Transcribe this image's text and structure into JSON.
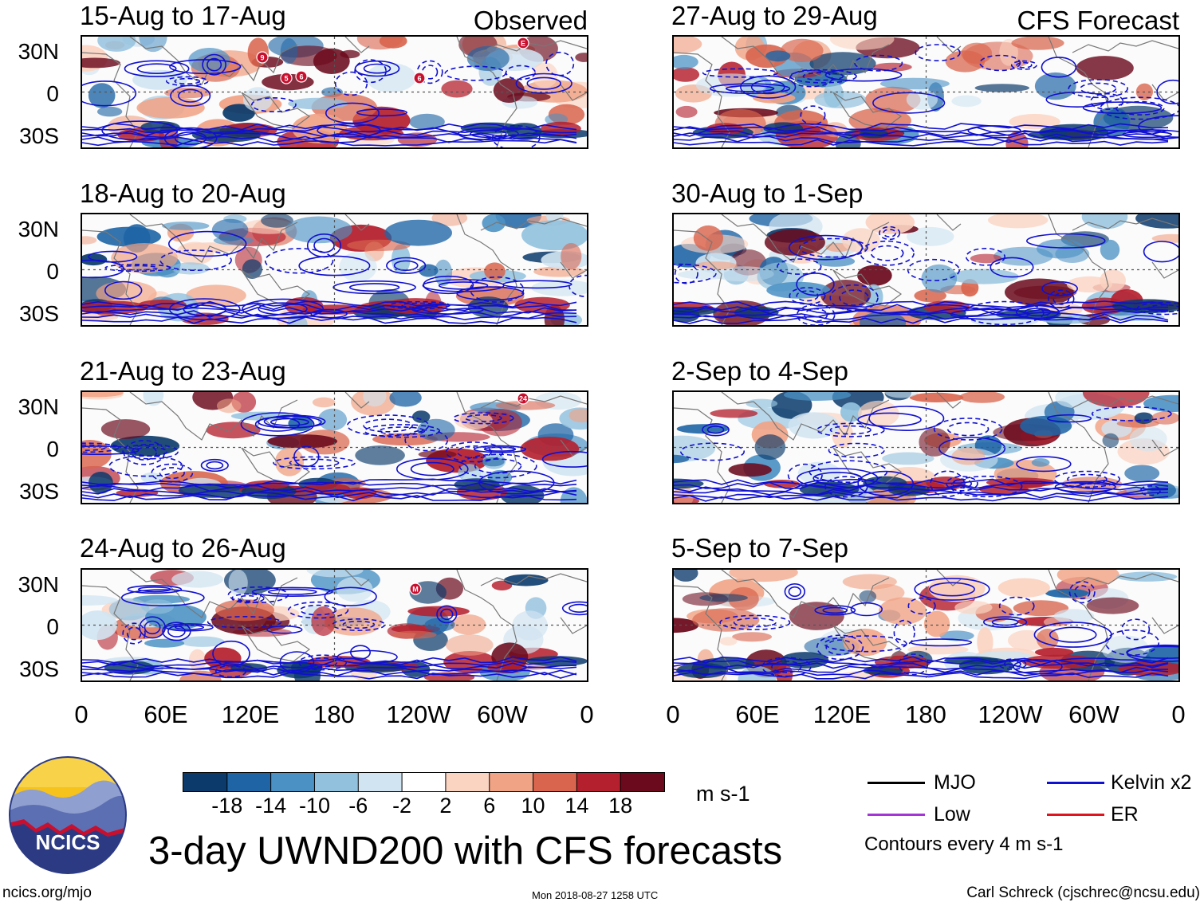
{
  "figure": {
    "title": "3-day UWND200 with CFS forecasts",
    "observed_label": "Observed",
    "forecast_label": "CFS Forecast",
    "latitude_labels": [
      "30N",
      "0",
      "30S"
    ],
    "longitude_labels": [
      "0",
      "60E",
      "120E",
      "180",
      "120W",
      "60W",
      "0"
    ]
  },
  "panels": [
    {
      "id": "obs-1",
      "title": "15-Aug to 17-Aug",
      "kind": "observed",
      "storm_markers": [
        "9",
        "5",
        "6",
        "6",
        "E"
      ]
    },
    {
      "id": "obs-2",
      "title": "18-Aug to 20-Aug",
      "kind": "observed",
      "storm_markers": []
    },
    {
      "id": "obs-3",
      "title": "21-Aug to 23-Aug",
      "kind": "observed",
      "storm_markers": [
        "24"
      ]
    },
    {
      "id": "obs-4",
      "title": "24-Aug to 26-Aug",
      "kind": "observed",
      "storm_markers": [
        "M"
      ]
    },
    {
      "id": "fc-1",
      "title": "27-Aug to 29-Aug",
      "kind": "forecast",
      "storm_markers": []
    },
    {
      "id": "fc-2",
      "title": "30-Aug to 1-Sep",
      "kind": "forecast",
      "storm_markers": []
    },
    {
      "id": "fc-3",
      "title": "2-Sep to 4-Sep",
      "kind": "forecast",
      "storm_markers": []
    },
    {
      "id": "fc-4",
      "title": "5-Sep to 7-Sep",
      "kind": "forecast",
      "storm_markers": []
    }
  ],
  "colorbar": {
    "units": "m s-1",
    "tick_labels": [
      "-18",
      "-14",
      "-10",
      "-6",
      "-2",
      "2",
      "6",
      "10",
      "14",
      "18"
    ],
    "colors": [
      "#0b3a6b",
      "#1f65a6",
      "#4b91c4",
      "#92c1de",
      "#d0e4f1",
      "#ffffff",
      "#fbd3c1",
      "#f1a385",
      "#d9654e",
      "#b5202e",
      "#6b0a1d"
    ]
  },
  "legend": {
    "items": [
      {
        "label": "MJO",
        "color": "#000000"
      },
      {
        "label": "Kelvin x2",
        "color": "#1010d0"
      },
      {
        "label": "Low",
        "color": "#a335d6"
      },
      {
        "label": "ER",
        "color": "#e0141e"
      }
    ],
    "note": "Contours every 4 m s-1"
  },
  "logo": {
    "text": "NCICS"
  },
  "footer": {
    "website": "ncics.org/mjo",
    "timestamp": "Mon 2018-08-27 1258 UTC",
    "author": "Carl Schreck (cjschrec@ncsu.edu)"
  }
}
